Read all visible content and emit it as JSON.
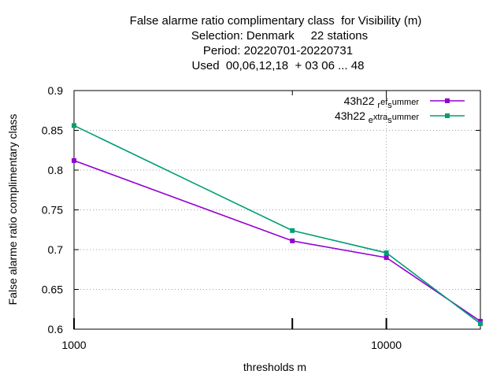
{
  "chart_data": {
    "type": "line",
    "title_lines": [
      "False alarme ratio complimentary class  for Visibility (m)",
      "Selection: Denmark     22 stations",
      "Period: 20220701-20220731",
      "Used  00,06,12,18  + 03 06 ... 48"
    ],
    "xlabel": "thresholds m",
    "ylabel": "False alarme ratio complimentary class",
    "x_scale": "log",
    "xlim": [
      1000,
      20000
    ],
    "ylim": [
      0.6,
      0.9
    ],
    "x_ticks": [
      1000,
      10000
    ],
    "x_tick_labels": [
      "1000",
      "10000"
    ],
    "y_ticks": [
      0.6,
      0.65,
      0.7,
      0.75,
      0.8,
      0.85,
      0.9
    ],
    "y_tick_labels": [
      "0.6",
      "0.65",
      "0.7",
      "0.75",
      "0.8",
      "0.85",
      "0.9"
    ],
    "grid": true,
    "legend_position": "top-right",
    "x": [
      1000,
      5000,
      10000,
      20000
    ],
    "series": [
      {
        "name_parts": [
          "43h22 ",
          "r",
          "ef",
          "s",
          "ummer"
        ],
        "color": "#9400d3",
        "values": [
          0.812,
          0.711,
          0.69,
          0.61
        ]
      },
      {
        "name_parts": [
          "43h22 ",
          "e",
          "xtra",
          "s",
          "ummer"
        ],
        "color": "#009e73",
        "values": [
          0.856,
          0.724,
          0.696,
          0.607
        ]
      }
    ]
  }
}
